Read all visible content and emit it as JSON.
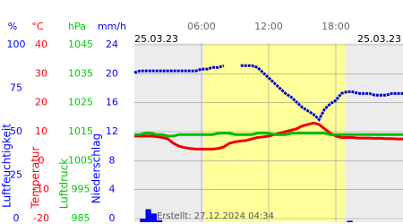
{
  "chart_data": {
    "type": "line",
    "date_left": "25.03.23",
    "date_right": "25.03.23",
    "note": "Erstellt: 27.12.2024 04:34",
    "xlim": [
      0,
      24
    ],
    "xticks": [
      {
        "value": 6,
        "label": "06:00"
      },
      {
        "value": 12,
        "label": "12:00"
      },
      {
        "value": 18,
        "label": "18:00"
      }
    ],
    "highlight_x": [
      6.2,
      18.8
    ],
    "grid": true,
    "axes": [
      {
        "unit": "%",
        "title": "Luftfeuchtigkeit",
        "color": "#0000ff",
        "lim": [
          0,
          100
        ],
        "ticks": [
          0,
          25,
          50,
          75,
          100
        ]
      },
      {
        "unit": "°C",
        "title": "Temperatur",
        "color": "#ff0000",
        "lim": [
          -20,
          40
        ],
        "ticks": [
          -20,
          -10,
          0,
          10,
          20,
          30,
          40
        ]
      },
      {
        "unit": "hPa",
        "title": "Luftdruck",
        "color": "#00cc00",
        "lim": [
          985,
          1045
        ],
        "ticks": [
          985,
          995,
          1005,
          1015,
          1025,
          1035,
          1045
        ]
      },
      {
        "unit": "mm/h",
        "title": "Niederschlag",
        "color": "#0000ff",
        "lim": [
          0,
          24
        ],
        "ticks": [
          0,
          4,
          8,
          12,
          16,
          20,
          24
        ]
      }
    ],
    "x": [
      0,
      0.5,
      1,
      1.5,
      2,
      2.5,
      3,
      3.5,
      4,
      4.5,
      5,
      5.5,
      6,
      6.5,
      7,
      7.5,
      8,
      8.5,
      9,
      9.5,
      10,
      10.5,
      11,
      11.5,
      12,
      12.5,
      13,
      13.5,
      14,
      14.5,
      15,
      15.5,
      16,
      16.5,
      17,
      17.5,
      18,
      18.5,
      19,
      19.5,
      20,
      20.5,
      21,
      21.5,
      22,
      22.5,
      23,
      23.5,
      24
    ],
    "series": [
      {
        "name": "Luftfeuchtigkeit",
        "axis": 0,
        "type": "line",
        "color": "#0000cc",
        "values": [
          84,
          85,
          85,
          85,
          85,
          85,
          85,
          85,
          85,
          85,
          85,
          85,
          86,
          86,
          87,
          87,
          88,
          null,
          null,
          88,
          88,
          88,
          87,
          84,
          81,
          78,
          75,
          72,
          70,
          67,
          64,
          62,
          60,
          57,
          63,
          66,
          68,
          72,
          73,
          73,
          72,
          72,
          72,
          71,
          71,
          71,
          72,
          72,
          72
        ]
      },
      {
        "name": "Temperatur",
        "axis": 1,
        "type": "line",
        "color": "#ee0000",
        "values": [
          8.5,
          8.5,
          8.5,
          8.5,
          8.3,
          8,
          7.5,
          6,
          5,
          4.5,
          4.2,
          4,
          4,
          4,
          4,
          4.2,
          4.8,
          6,
          6.5,
          6.8,
          7,
          7.5,
          8,
          8.2,
          8.5,
          9,
          9.5,
          10,
          10.5,
          11,
          12,
          12.5,
          13,
          12.5,
          11,
          9.5,
          8.5,
          8,
          8,
          8,
          7.8,
          7.8,
          7.8,
          7.7,
          7.7,
          7.6,
          7.6,
          7.5,
          7.5
        ]
      },
      {
        "name": "Luftdruck",
        "axis": 2,
        "type": "line",
        "color": "#00bb00",
        "values": [
          1014,
          1014,
          1014.5,
          1014.5,
          1014,
          1014,
          1013.5,
          1013.5,
          1014,
          1014,
          1014,
          1014,
          1014,
          1014,
          1014,
          1014.5,
          1014.5,
          1014.5,
          1014,
          1014,
          1014,
          1014,
          1014.5,
          1014.5,
          1014.5,
          1014,
          1014,
          1014,
          1014.5,
          1014.5,
          1014.5,
          1014.5,
          1014.5,
          1014.5,
          1014.5,
          1014,
          1014,
          1014,
          1014,
          1014,
          1014,
          1014,
          1014,
          1014,
          1014,
          1014,
          1014,
          1014,
          1014
        ]
      },
      {
        "name": "Niederschlag",
        "axis": 3,
        "type": "bar",
        "color": "#0000ff",
        "values": [
          0,
          0.5,
          1.8,
          1.2,
          0.3,
          0,
          0,
          0,
          0,
          0,
          0,
          0,
          0,
          0,
          0,
          0,
          0,
          0,
          0,
          0,
          0,
          0,
          0,
          0,
          0,
          0,
          0,
          0,
          0,
          0,
          0,
          0,
          0,
          0,
          0,
          0,
          0,
          0,
          0.2,
          0,
          0,
          0,
          0,
          0,
          0,
          0,
          0,
          0,
          0
        ]
      }
    ]
  }
}
